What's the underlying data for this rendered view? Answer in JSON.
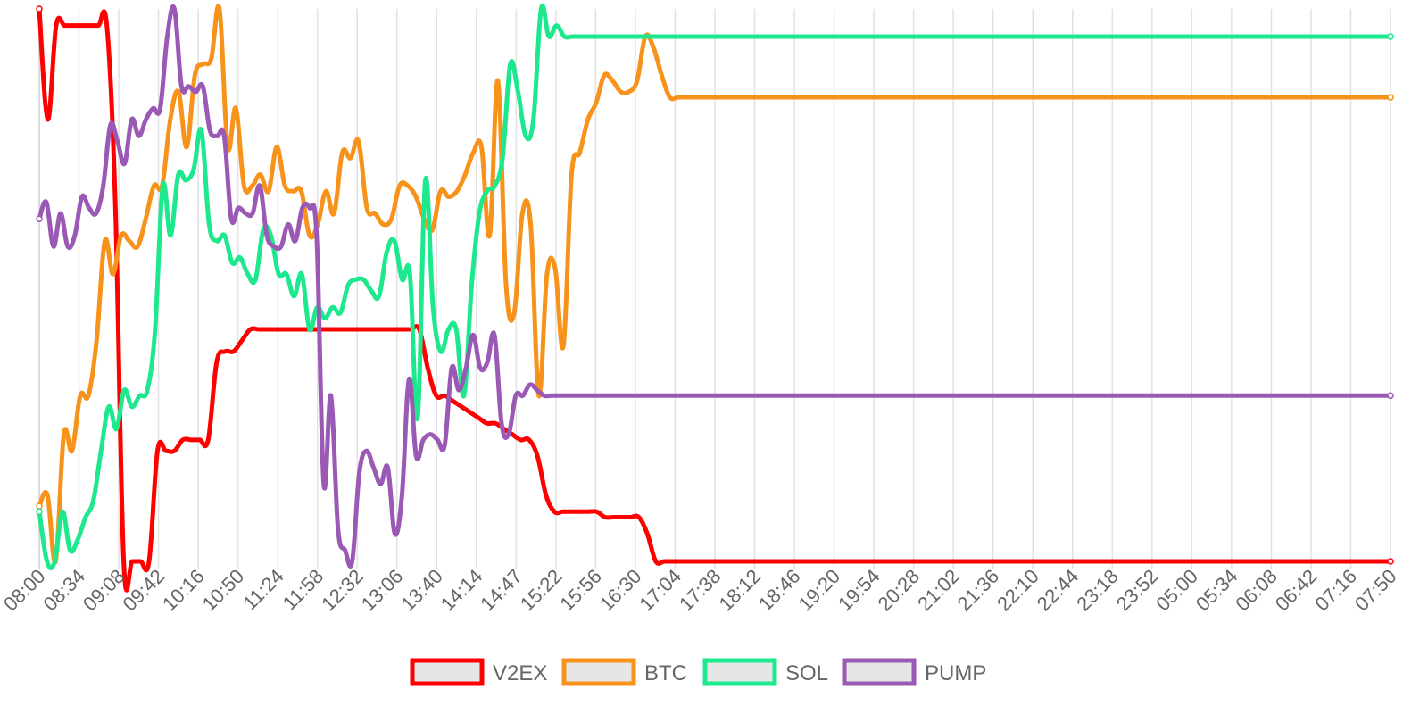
{
  "chart_data": {
    "type": "line",
    "title": "",
    "xlabel": "",
    "ylabel": "",
    "grid": "vertical",
    "legend": "bottom-center",
    "y_axis_labels": "none",
    "x_labels": [
      "08:00",
      "08:34",
      "09:08",
      "09:42",
      "10:16",
      "10:50",
      "11:24",
      "11:58",
      "12:32",
      "13:06",
      "13:40",
      "14:14",
      "14:47",
      "15:22",
      "15:56",
      "16:30",
      "17:04",
      "17:38",
      "18:12",
      "18:46",
      "19:20",
      "19:54",
      "20:28",
      "21:02",
      "21:36",
      "22:10",
      "22:44",
      "23:18",
      "23:52",
      "05:00",
      "05:34",
      "06:08",
      "06:42",
      "07:16",
      "07:50"
    ],
    "series": [
      {
        "name": "V2EX",
        "color": "#ff0000",
        "values": [
          100,
          80,
          97,
          97,
          97,
          97,
          97,
          97,
          97,
          65,
          0,
          0,
          0,
          0,
          20,
          20,
          20,
          22,
          22,
          22,
          22,
          36,
          38,
          38,
          40,
          42,
          42,
          42,
          42,
          42,
          42,
          42,
          42,
          42,
          42,
          42,
          42,
          42,
          42,
          42,
          42,
          42,
          42,
          42,
          42,
          42,
          35,
          30,
          30,
          29,
          28,
          27,
          26,
          25,
          25,
          24,
          23,
          22,
          22,
          19,
          12,
          9,
          9,
          9,
          9,
          9,
          9,
          8,
          8,
          8,
          8,
          8,
          5,
          0,
          0,
          0,
          0,
          0,
          0,
          0,
          0,
          0,
          0,
          0,
          0,
          0,
          0,
          0,
          0,
          0,
          0,
          0,
          0,
          0,
          0,
          0,
          0,
          0,
          0,
          0,
          0,
          0,
          0,
          0,
          0,
          0,
          0,
          0,
          0,
          0,
          0,
          0,
          0,
          0,
          0,
          0,
          0,
          0,
          0,
          0,
          0,
          0,
          0,
          0,
          0,
          0,
          0,
          0,
          0,
          0,
          0,
          0,
          0,
          0,
          0,
          0,
          0,
          0,
          0,
          0,
          0,
          0,
          0,
          0,
          0,
          0,
          0,
          0,
          0,
          0,
          0,
          0,
          0,
          0,
          0,
          0,
          0,
          0,
          0,
          0,
          0
        ]
      },
      {
        "name": "BTC",
        "color": "#f7931a",
        "values": [
          10,
          12,
          0,
          23,
          20,
          30,
          30,
          40,
          58,
          52,
          59,
          58,
          57,
          62,
          68,
          68,
          80,
          85,
          75,
          88,
          90,
          91,
          100,
          75,
          82,
          68,
          68,
          70,
          67,
          75,
          68,
          67,
          67,
          59,
          61,
          67,
          63,
          74,
          73,
          76,
          64,
          63,
          61,
          62,
          68,
          68,
          66,
          62,
          60,
          67,
          66,
          67,
          70,
          74,
          75,
          59,
          87,
          50,
          45,
          63,
          61,
          30,
          52,
          53,
          39,
          70,
          74,
          80,
          83,
          88,
          87,
          85,
          85,
          87,
          95,
          93,
          88,
          84,
          84,
          84,
          84,
          84,
          84,
          84,
          84,
          84,
          84,
          84,
          84,
          84,
          84,
          84,
          84,
          84,
          84,
          84,
          84,
          84,
          84,
          84,
          84,
          84,
          84,
          84,
          84,
          84,
          84,
          84,
          84,
          84,
          84,
          84,
          84,
          84,
          84,
          84,
          84,
          84,
          84,
          84,
          84,
          84,
          84,
          84,
          84,
          84,
          84,
          84,
          84,
          84,
          84,
          84,
          84,
          84,
          84,
          84,
          84,
          84,
          84,
          84,
          84,
          84,
          84,
          84,
          84,
          84,
          84,
          84,
          84,
          84,
          84,
          84,
          84,
          84,
          84,
          84,
          84,
          84,
          84,
          84,
          84,
          84,
          84,
          84,
          84,
          84
        ]
      },
      {
        "name": "SOL",
        "color": "#1de88d",
        "values": [
          9,
          0,
          0,
          9,
          2,
          4,
          8,
          11,
          20,
          28,
          24,
          31,
          28,
          30,
          31,
          42,
          68,
          59,
          70,
          69,
          71,
          78,
          61,
          58,
          59,
          54,
          55,
          52,
          51,
          60,
          59,
          52,
          52,
          48,
          52,
          42,
          46,
          44,
          46,
          45,
          50,
          51,
          51,
          49,
          48,
          56,
          58,
          51,
          52,
          26,
          69,
          46,
          38,
          42,
          42,
          30,
          50,
          63,
          67,
          68,
          73,
          90,
          85,
          77,
          80,
          100,
          95,
          97,
          95,
          95,
          95,
          95,
          95,
          95,
          95,
          95,
          95,
          95,
          95,
          95,
          95,
          95,
          95,
          95,
          95,
          95,
          95,
          95,
          95,
          95,
          95,
          95,
          95,
          95,
          95,
          95,
          95,
          95,
          95,
          95,
          95,
          95,
          95,
          95,
          95,
          95,
          95,
          95,
          95,
          95,
          95,
          95,
          95,
          95,
          95,
          95,
          95,
          95,
          95,
          95,
          95,
          95,
          95,
          95,
          95,
          95,
          95,
          95,
          95,
          95,
          95,
          95,
          95,
          95,
          95,
          95,
          95,
          95,
          95,
          95,
          95,
          95,
          95,
          95,
          95,
          95,
          95,
          95,
          95,
          95,
          95,
          95,
          95,
          95,
          95,
          95,
          95,
          95,
          95,
          95,
          95,
          95,
          95,
          95,
          95,
          95,
          95,
          95,
          95,
          95,
          95,
          95,
          95,
          95,
          95,
          95
        ]
      },
      {
        "name": "PUMP",
        "color": "#9b59b6",
        "values": [
          62,
          65,
          57,
          63,
          57,
          59,
          66,
          64,
          63,
          68,
          79,
          76,
          72,
          80,
          77,
          80,
          82,
          82,
          95,
          100,
          86,
          86,
          85,
          86,
          78,
          77,
          77,
          62,
          64,
          63,
          63,
          68,
          59,
          57,
          57,
          61,
          58,
          64,
          64,
          59,
          14,
          30,
          6,
          2,
          0,
          16,
          20,
          17,
          14,
          17,
          5,
          12,
          33,
          19,
          22,
          23,
          22,
          21,
          35,
          31,
          35,
          41,
          35,
          36,
          41,
          25,
          23,
          30,
          30,
          32,
          31,
          30,
          30,
          30,
          30,
          30,
          30,
          30,
          30,
          30,
          30,
          30,
          30,
          30,
          30,
          30,
          30,
          30,
          30,
          30,
          30,
          30,
          30,
          30,
          30,
          30,
          30,
          30,
          30,
          30,
          30,
          30,
          30,
          30,
          30,
          30,
          30,
          30,
          30,
          30,
          30,
          30,
          30,
          30,
          30,
          30,
          30,
          30,
          30,
          30,
          30,
          30,
          30,
          30,
          30,
          30,
          30,
          30,
          30,
          30,
          30,
          30,
          30,
          30,
          30,
          30,
          30,
          30,
          30,
          30,
          30,
          30,
          30,
          30,
          30,
          30,
          30,
          30,
          30,
          30,
          30,
          30,
          30,
          30,
          30,
          30,
          30,
          30,
          30,
          30,
          30,
          30,
          30,
          30,
          30,
          30,
          30,
          30,
          30,
          30,
          30,
          30,
          30,
          30,
          30,
          30,
          30,
          30,
          30,
          30,
          30,
          30,
          30,
          30,
          30,
          30,
          30,
          30,
          30,
          30,
          30
        ]
      }
    ]
  },
  "legend": [
    {
      "label": "V2EX",
      "color": "#ff0000"
    },
    {
      "label": "BTC",
      "color": "#f7931a"
    },
    {
      "label": "SOL",
      "color": "#1de88d"
    },
    {
      "label": "PUMP",
      "color": "#9b59b6"
    }
  ]
}
